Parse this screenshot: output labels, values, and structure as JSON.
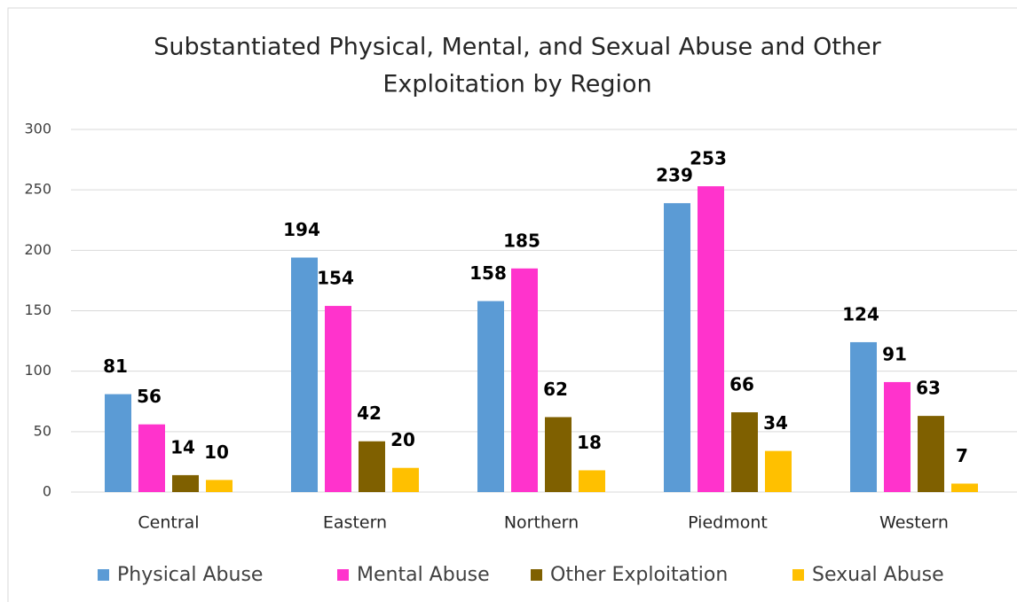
{
  "chart_data": {
    "type": "bar",
    "title": [
      "Substantiated Physical, Mental, and Sexual Abuse and Other",
      "Exploitation by Region"
    ],
    "categories": [
      "Central",
      "Eastern",
      "Northern",
      "Piedmont",
      "Western"
    ],
    "series": [
      {
        "name": "Physical Abuse",
        "color": "#5b9bd5",
        "values": [
          81,
          194,
          158,
          239,
          124
        ]
      },
      {
        "name": "Mental Abuse",
        "color": "#ff33cc",
        "values": [
          56,
          154,
          185,
          253,
          91
        ]
      },
      {
        "name": "Other Exploitation",
        "color": "#7f6000",
        "values": [
          14,
          42,
          62,
          66,
          63
        ]
      },
      {
        "name": "Sexual Abuse",
        "color": "#ffc000",
        "values": [
          10,
          20,
          18,
          34,
          7
        ]
      }
    ],
    "ylim": [
      0,
      300
    ],
    "yticks": [
      0,
      50,
      100,
      150,
      200,
      250,
      300
    ],
    "grid": true,
    "legend": "bottom"
  }
}
